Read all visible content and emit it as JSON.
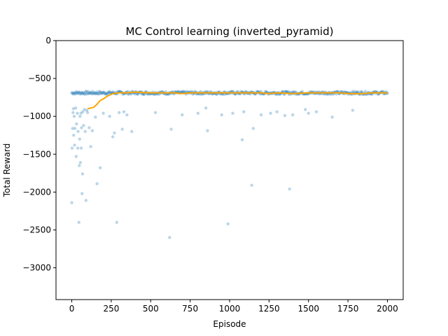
{
  "chart_data": {
    "type": "scatter",
    "title": "MC Control learning (inverted_pyramid)",
    "xlabel": "Episode",
    "ylabel": "Total Reward",
    "xlim": [
      -100,
      2100
    ],
    "ylim": [
      -3420,
      0
    ],
    "x_ticks": [
      0,
      250,
      500,
      750,
      1000,
      1250,
      1500,
      1750,
      2000
    ],
    "x_tick_labels": [
      "0",
      "250",
      "500",
      "750",
      "1000",
      "1250",
      "1500",
      "1750",
      "2000"
    ],
    "y_ticks": [
      0,
      -500,
      -1000,
      -1500,
      -2000,
      -2500,
      -3000
    ],
    "y_tick_labels": [
      "0",
      "−500",
      "−1000",
      "−1500",
      "−2000",
      "−2500",
      "−3000"
    ],
    "grid": false,
    "legend": "none",
    "series": [
      {
        "kind": "scatter",
        "color": "#1f77b4",
        "opacity": 0.3,
        "outliers": [
          [
            0,
            -2140
          ],
          [
            2,
            -1420
          ],
          [
            5,
            -1160
          ],
          [
            8,
            -950
          ],
          [
            10,
            -900
          ],
          [
            12,
            -1250
          ],
          [
            15,
            -1000
          ],
          [
            18,
            -1380
          ],
          [
            20,
            -1160
          ],
          [
            25,
            -890
          ],
          [
            28,
            -1530
          ],
          [
            30,
            -1100
          ],
          [
            35,
            -960
          ],
          [
            38,
            -1420
          ],
          [
            40,
            -1200
          ],
          [
            45,
            -2400
          ],
          [
            48,
            -1650
          ],
          [
            50,
            -1300
          ],
          [
            52,
            -1000
          ],
          [
            55,
            -1610
          ],
          [
            58,
            -960
          ],
          [
            60,
            -1420
          ],
          [
            62,
            -1150
          ],
          [
            65,
            -2020
          ],
          [
            68,
            -1760
          ],
          [
            70,
            -940
          ],
          [
            75,
            -1120
          ],
          [
            80,
            -910
          ],
          [
            85,
            -1200
          ],
          [
            90,
            -2110
          ],
          [
            95,
            -920
          ],
          [
            100,
            -950
          ],
          [
            110,
            -1150
          ],
          [
            120,
            -1400
          ],
          [
            130,
            -1190
          ],
          [
            150,
            -1010
          ],
          [
            160,
            -1890
          ],
          [
            180,
            -1680
          ],
          [
            200,
            -960
          ],
          [
            240,
            -1000
          ],
          [
            260,
            -1270
          ],
          [
            270,
            -1220
          ],
          [
            285,
            -2400
          ],
          [
            300,
            -950
          ],
          [
            320,
            -1170
          ],
          [
            330,
            -940
          ],
          [
            350,
            -980
          ],
          [
            380,
            -1200
          ],
          [
            530,
            -950
          ],
          [
            620,
            -2600
          ],
          [
            630,
            -1170
          ],
          [
            700,
            -980
          ],
          [
            800,
            -960
          ],
          [
            850,
            -890
          ],
          [
            860,
            -1190
          ],
          [
            950,
            -980
          ],
          [
            990,
            -2420
          ],
          [
            1020,
            -960
          ],
          [
            1080,
            -1310
          ],
          [
            1090,
            -940
          ],
          [
            1140,
            -1910
          ],
          [
            1150,
            -1160
          ],
          [
            1200,
            -980
          ],
          [
            1260,
            -960
          ],
          [
            1300,
            -940
          ],
          [
            1350,
            -990
          ],
          [
            1380,
            -1960
          ],
          [
            1400,
            -980
          ],
          [
            1480,
            -910
          ],
          [
            1500,
            -960
          ],
          [
            1550,
            -940
          ],
          [
            1650,
            -1010
          ],
          [
            1780,
            -920
          ]
        ]
      },
      {
        "kind": "line",
        "color": "#ffa500",
        "points": [
          [
            100,
            -900
          ],
          [
            120,
            -890
          ],
          [
            140,
            -880
          ],
          [
            160,
            -840
          ],
          [
            180,
            -790
          ],
          [
            200,
            -770
          ],
          [
            220,
            -740
          ],
          [
            240,
            -720
          ],
          [
            260,
            -700
          ],
          [
            300,
            -690
          ],
          [
            350,
            -690
          ],
          [
            400,
            -680
          ],
          [
            450,
            -685
          ],
          [
            500,
            -690
          ],
          [
            550,
            -690
          ],
          [
            600,
            -690
          ],
          [
            650,
            -690
          ],
          [
            700,
            -700
          ],
          [
            750,
            -690
          ],
          [
            800,
            -690
          ],
          [
            900,
            -690
          ],
          [
            1000,
            -690
          ],
          [
            1100,
            -690
          ],
          [
            1200,
            -690
          ],
          [
            1250,
            -700
          ],
          [
            1300,
            -690
          ],
          [
            1400,
            -700
          ],
          [
            1500,
            -690
          ],
          [
            1600,
            -690
          ],
          [
            1700,
            -690
          ],
          [
            1750,
            -700
          ],
          [
            1850,
            -700
          ],
          [
            1900,
            -690
          ],
          [
            2000,
            -690
          ]
        ]
      }
    ]
  }
}
